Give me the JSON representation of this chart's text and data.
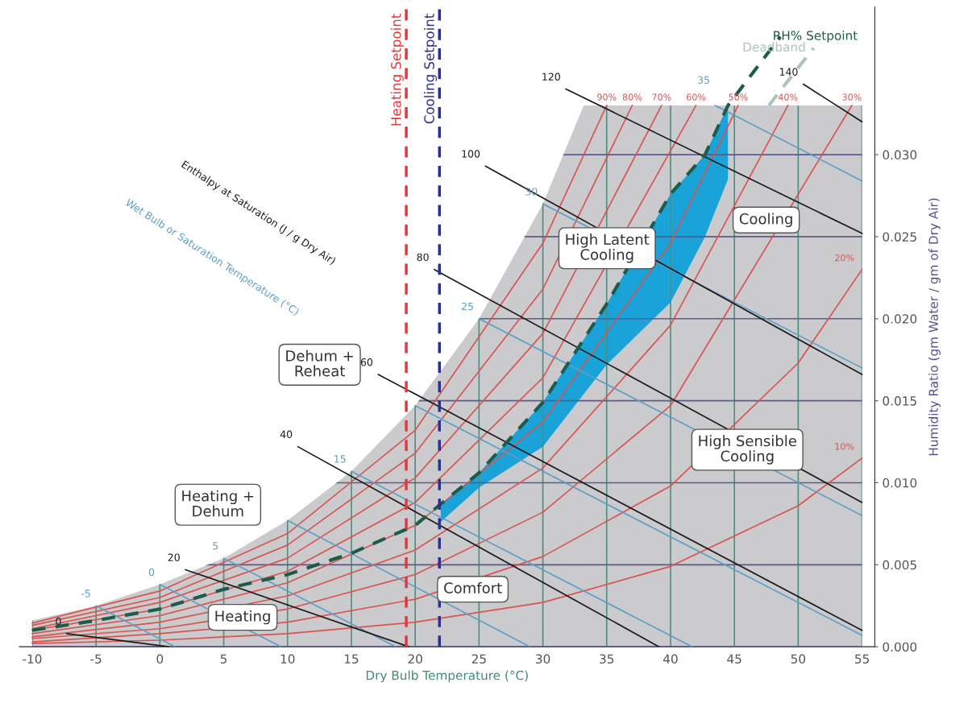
{
  "chart_data": {
    "type": "line",
    "xlabel": "Dry Bulb Temperature (°C)",
    "ylabel": "Humidity Ratio (gm Water / gm of Dry Air)",
    "xlim": [
      -11,
      56
    ],
    "ylim": [
      0,
      0.039
    ],
    "xticks": [
      -10,
      -5,
      0,
      5,
      10,
      15,
      20,
      25,
      30,
      35,
      40,
      45,
      50,
      55
    ],
    "yticks": [
      {
        "value": 0,
        "label": "0.000"
      },
      {
        "value": 0.005,
        "label": "0.005"
      },
      {
        "value": 0.01,
        "label": "0.010"
      },
      {
        "value": 0.015,
        "label": "0.015"
      },
      {
        "value": 0.02,
        "label": "0.020"
      },
      {
        "value": 0.025,
        "label": "0.025"
      },
      {
        "value": 0.03,
        "label": "0.030"
      }
    ],
    "grid": true,
    "series": [
      {
        "type": "area",
        "color": "#cbcbcd",
        "x": [
          -10,
          -5,
          0,
          5,
          10,
          15,
          20,
          25,
          30,
          33.2,
          55
        ],
        "values": [
          0.0016,
          0.0025,
          0.0038,
          0.0054,
          0.0077,
          0.0107,
          0.0147,
          0.02,
          0.027,
          0.033,
          0.033
        ]
      },
      {
        "name": "90%",
        "color": "#d9534f",
        "x": [
          -10,
          0,
          10,
          20,
          30,
          35
        ],
        "values": [
          0.00144,
          0.0034,
          0.0069,
          0.0132,
          0.0246,
          0.033
        ]
      },
      {
        "name": "80%",
        "color": "#d9534f",
        "x": [
          -10,
          0,
          10,
          20,
          30,
          37
        ],
        "values": [
          0.0013,
          0.003,
          0.0062,
          0.0118,
          0.0218,
          0.033
        ]
      },
      {
        "name": "70%",
        "color": "#d9534f",
        "x": [
          -10,
          0,
          10,
          20,
          30,
          39.3
        ],
        "values": [
          0.0011,
          0.0027,
          0.0054,
          0.0103,
          0.0191,
          0.033
        ]
      },
      {
        "name": "60%",
        "color": "#d9534f",
        "x": [
          -10,
          0,
          10,
          20,
          30,
          42
        ],
        "values": [
          0.001,
          0.0023,
          0.0046,
          0.0088,
          0.0164,
          0.033
        ]
      },
      {
        "name": "50%",
        "color": "#d9534f",
        "x": [
          -10,
          0,
          10,
          20,
          30,
          40,
          45.3
        ],
        "values": [
          0.0008,
          0.0019,
          0.0039,
          0.0074,
          0.0137,
          0.0246,
          0.033
        ]
      },
      {
        "name": "40%",
        "color": "#d9534f",
        "x": [
          -10,
          0,
          10,
          20,
          30,
          40,
          49.2
        ],
        "values": [
          0.0006,
          0.0015,
          0.0031,
          0.0059,
          0.0109,
          0.0196,
          0.033
        ]
      },
      {
        "name": "30%",
        "color": "#d9534f",
        "x": [
          -10,
          0,
          10,
          20,
          30,
          40,
          54.2
        ],
        "values": [
          0.0005,
          0.0011,
          0.0023,
          0.0044,
          0.0082,
          0.0147,
          0.033
        ]
      },
      {
        "name": "20%",
        "color": "#d9534f",
        "x": [
          -10,
          0,
          10,
          20,
          30,
          40,
          50,
          55
        ],
        "values": [
          0.0003,
          0.0008,
          0.0015,
          0.0029,
          0.0055,
          0.0098,
          0.0173,
          0.023
        ]
      },
      {
        "name": "10%",
        "color": "#d9534f",
        "x": [
          -10,
          0,
          10,
          20,
          30,
          40,
          50,
          55
        ],
        "values": [
          0.0002,
          0.0004,
          0.0008,
          0.0015,
          0.0027,
          0.0049,
          0.0086,
          0.0115
        ]
      },
      {
        "name": "-5",
        "color": "#5a9fc9",
        "x": [
          -5,
          1.2
        ],
        "values": [
          0.0025,
          0
        ]
      },
      {
        "name": "0",
        "color": "#5a9fc9",
        "x": [
          0,
          9.5
        ],
        "values": [
          0.0038,
          0
        ]
      },
      {
        "name": "5",
        "color": "#5a9fc9",
        "x": [
          5,
          18.5
        ],
        "values": [
          0.0054,
          0
        ]
      },
      {
        "color": "#5a9fc9",
        "x": [
          10,
          29
        ],
        "values": [
          0.0077,
          0
        ]
      },
      {
        "name": "15",
        "color": "#5a9fc9",
        "x": [
          15,
          41.7
        ],
        "values": [
          0.0107,
          0
        ]
      },
      {
        "color": "#5a9fc9",
        "x": [
          20,
          55
        ],
        "values": [
          0.0147,
          0.0007
        ]
      },
      {
        "name": "25",
        "color": "#5a9fc9",
        "x": [
          25,
          55
        ],
        "values": [
          0.02,
          0.008
        ]
      },
      {
        "name": "30",
        "color": "#5a9fc9",
        "x": [
          30,
          55
        ],
        "values": [
          0.027,
          0.017
        ]
      },
      {
        "name": "35",
        "color": "#5a9fc9",
        "x": [
          43.5,
          55
        ],
        "values": [
          0.033,
          0.0284
        ]
      },
      {
        "name": "0",
        "color": "#1a1a1a",
        "x": [
          -7.3,
          0.7
        ],
        "values": [
          0.0008,
          0
        ]
      },
      {
        "name": "20",
        "color": "#1a1a1a",
        "x": [
          2.0,
          19.5
        ],
        "values": [
          0.0047,
          0
        ]
      },
      {
        "name": "40",
        "color": "#1a1a1a",
        "x": [
          10.8,
          39.1
        ],
        "values": [
          0.0122,
          0
        ]
      },
      {
        "name": "60",
        "color": "#1a1a1a",
        "x": [
          17.1,
          55
        ],
        "values": [
          0.0166,
          0.001
        ]
      },
      {
        "name": "80",
        "color": "#1a1a1a",
        "x": [
          21.5,
          55
        ],
        "values": [
          0.023,
          0.0088
        ]
      },
      {
        "name": "100",
        "color": "#1a1a1a",
        "x": [
          25.5,
          55
        ],
        "values": [
          0.0293,
          0.0166
        ]
      },
      {
        "name": "120",
        "color": "#1a1a1a",
        "x": [
          31.8,
          55
        ],
        "values": [
          0.034,
          0.0252
        ]
      },
      {
        "name": "140",
        "color": "#1a1a1a",
        "x": [
          50.4,
          55
        ],
        "values": [
          0.0343,
          0.032
        ]
      },
      {
        "name": "RH% Setpoint",
        "color": "#1d5c4a",
        "line_style": "dashed",
        "x": [
          -10,
          -5,
          0,
          5,
          10,
          15,
          20,
          22,
          25,
          30,
          35,
          40,
          42.7,
          44.5,
          48.6
        ],
        "values": [
          0.001,
          0.0016,
          0.0023,
          0.0035,
          0.0044,
          0.0057,
          0.0074,
          0.0087,
          0.0106,
          0.0149,
          0.0209,
          0.0276,
          0.03,
          0.033,
          0.0372
        ],
        "upper": [
          null,
          null,
          null,
          null,
          null,
          null,
          null,
          0.0087,
          0.0106,
          0.0149,
          0.0209,
          0.0276,
          0.03,
          0.033,
          null
        ],
        "lower": [
          null,
          null,
          null,
          null,
          null,
          null,
          null,
          0.0076,
          0.0097,
          0.0122,
          0.0172,
          0.021,
          0.025,
          0.0285,
          null
        ]
      },
      {
        "name": "Deadband",
        "color": "#a9c4bd",
        "line_style": "dashed",
        "x": [
          47.7,
          51.2
        ],
        "values": [
          0.033,
          0.0365
        ]
      }
    ],
    "ref_lines": [
      {
        "axis": "x",
        "value": 19.3,
        "label": "Heating Setpoint",
        "color": "#e0393e",
        "line_style": "dashed"
      },
      {
        "axis": "x",
        "value": 21.9,
        "label": "Cooling Setpoint",
        "color": "#2b2f8f",
        "line_style": "dashed"
      }
    ],
    "annotations": [
      "Enthalpy at Saturation (J / g Dry Air)",
      "Wet Bulb or Saturation Temperature (°C)",
      "Heating",
      "Heating +\nDehum",
      "Comfort",
      "Dehum +\nReheat",
      "High Latent\nCooling",
      "Cooling",
      "High Sensible\nCooling"
    ]
  }
}
